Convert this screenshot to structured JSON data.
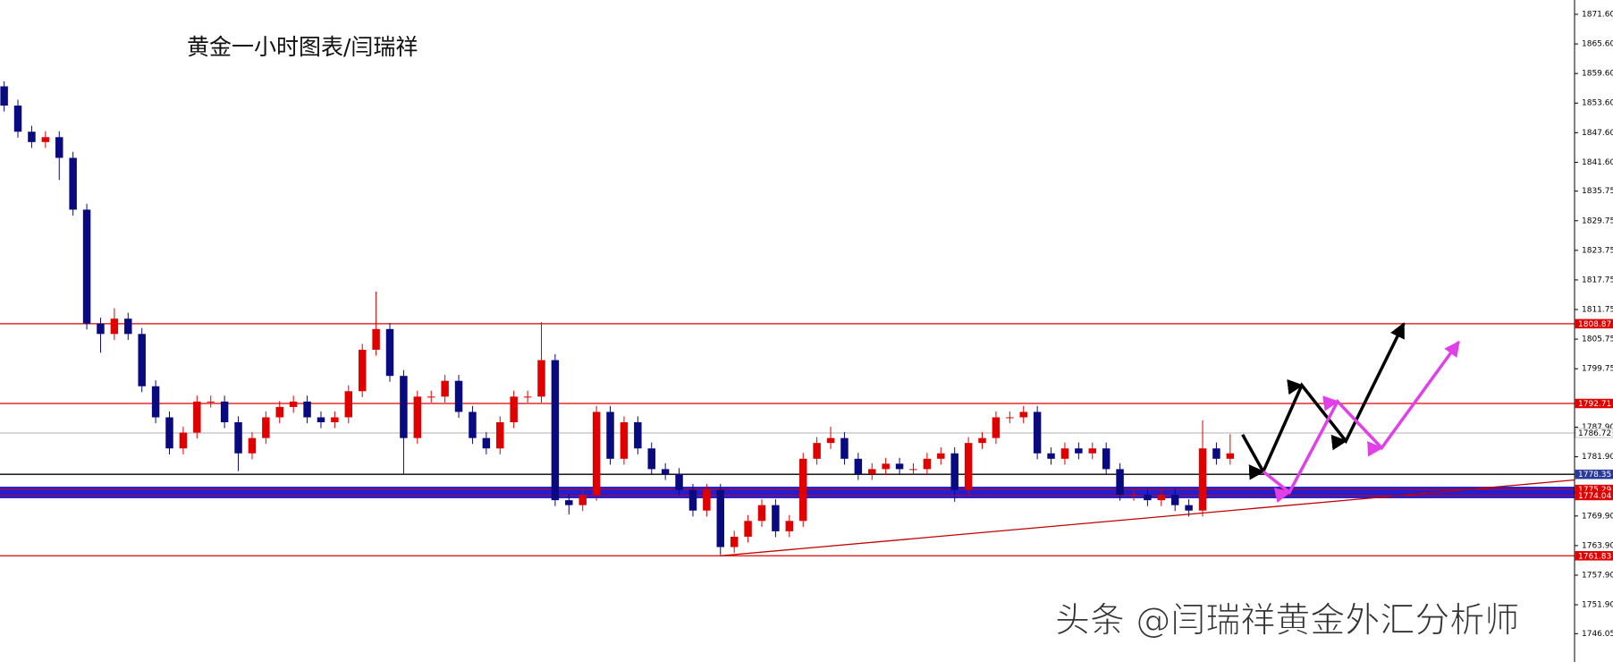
{
  "chart_data": {
    "type": "candlestick",
    "title": "黄金一小时图表/闫瑞祥",
    "watermark": "头条 @闫瑞祥黄金外汇分析师",
    "up_color": "#e00000",
    "down_color": "#0a0a80",
    "open": [
      1857.0,
      1853.1,
      1847.8,
      1845.7,
      1846.7,
      1842.5,
      1832.0,
      1808.9,
      1806.8,
      1809.9,
      1806.8,
      1796.2,
      1789.9,
      1783.6,
      1786.8,
      1793.1,
      1793.1,
      1788.9,
      1782.6,
      1785.7,
      1789.9,
      1792.0,
      1793.1,
      1789.9,
      1788.9,
      1789.9,
      1795.2,
      1803.6,
      1807.8,
      1798.3,
      1785.7,
      1794.1,
      1794.1,
      1797.3,
      1791.0,
      1785.7,
      1783.6,
      1788.9,
      1794.1,
      1794.1,
      1801.5,
      1773.1,
      1772.1,
      1774.2,
      1791.0,
      1781.5,
      1788.9,
      1783.6,
      1779.4,
      1778.4,
      1775.2,
      1771.0,
      1775.2,
      1763.6,
      1765.7,
      1768.9,
      1772.1,
      1766.8,
      1768.9,
      1781.5,
      1784.7,
      1785.7,
      1781.5,
      1778.4,
      1779.4,
      1780.5,
      1779.4,
      1779.4,
      1781.5,
      1782.6,
      1775.2,
      1784.7,
      1785.7,
      1789.9,
      1789.9,
      1791.0,
      1782.6,
      1781.5,
      1783.6,
      1782.6,
      1783.6,
      1779.4,
      1774.2,
      1774.2,
      1773.1,
      1774.2,
      1772.1,
      1771.0,
      1783.6,
      1781.5
    ],
    "high": [
      1858.0,
      1854.3,
      1849.0,
      1847.9,
      1847.9,
      1843.7,
      1833.2,
      1810.1,
      1812.0,
      1811.1,
      1808.0,
      1797.4,
      1791.1,
      1788.0,
      1794.3,
      1794.3,
      1794.3,
      1790.1,
      1786.9,
      1791.1,
      1793.2,
      1794.3,
      1794.3,
      1791.1,
      1791.1,
      1796.4,
      1804.8,
      1815.4,
      1809.0,
      1799.5,
      1795.3,
      1795.3,
      1798.5,
      1798.5,
      1792.2,
      1786.9,
      1790.1,
      1795.3,
      1795.3,
      1809.2,
      1802.7,
      1774.3,
      1775.4,
      1792.2,
      1792.2,
      1790.1,
      1790.1,
      1784.8,
      1780.6,
      1779.6,
      1776.4,
      1776.4,
      1776.4,
      1766.9,
      1770.1,
      1773.3,
      1773.3,
      1770.1,
      1782.7,
      1785.9,
      1788.0,
      1786.9,
      1782.7,
      1780.6,
      1781.7,
      1781.7,
      1780.6,
      1782.7,
      1783.8,
      1783.8,
      1785.9,
      1786.9,
      1791.1,
      1791.1,
      1792.2,
      1792.2,
      1783.8,
      1784.8,
      1784.8,
      1784.8,
      1784.8,
      1780.6,
      1775.4,
      1775.4,
      1775.4,
      1775.4,
      1773.3,
      1789.3,
      1784.8,
      1786.5
    ],
    "low": [
      1851.9,
      1846.6,
      1844.5,
      1844.5,
      1838.0,
      1830.8,
      1807.7,
      1803.0,
      1805.6,
      1805.6,
      1795.0,
      1788.7,
      1782.4,
      1782.4,
      1785.6,
      1791.9,
      1787.7,
      1779.0,
      1781.4,
      1784.5,
      1788.7,
      1790.8,
      1788.7,
      1787.7,
      1787.7,
      1788.7,
      1794.0,
      1802.4,
      1797.1,
      1778.5,
      1784.5,
      1792.9,
      1792.9,
      1789.8,
      1784.5,
      1782.4,
      1782.4,
      1787.7,
      1792.9,
      1792.9,
      1771.9,
      1770.2,
      1770.9,
      1773.0,
      1780.3,
      1780.3,
      1782.4,
      1778.2,
      1777.2,
      1774.0,
      1769.8,
      1769.8,
      1762.0,
      1762.4,
      1764.5,
      1767.7,
      1765.6,
      1765.6,
      1767.7,
      1780.3,
      1783.5,
      1780.3,
      1777.2,
      1777.2,
      1778.2,
      1778.2,
      1778.2,
      1778.2,
      1780.3,
      1772.8,
      1774.0,
      1783.5,
      1784.5,
      1788.7,
      1788.7,
      1781.4,
      1780.3,
      1780.3,
      1781.4,
      1781.4,
      1778.2,
      1773.0,
      1773.0,
      1771.9,
      1771.9,
      1770.9,
      1769.8,
      1769.8,
      1780.3,
      1780.3
    ],
    "close": [
      1853.1,
      1847.8,
      1845.7,
      1846.7,
      1842.5,
      1832.0,
      1808.9,
      1806.8,
      1809.9,
      1806.8,
      1796.2,
      1789.9,
      1783.6,
      1786.8,
      1793.1,
      1793.1,
      1788.9,
      1782.6,
      1785.7,
      1789.9,
      1792.0,
      1793.1,
      1789.9,
      1788.9,
      1789.9,
      1795.2,
      1803.6,
      1807.8,
      1798.3,
      1785.7,
      1794.1,
      1794.1,
      1797.3,
      1791.0,
      1785.7,
      1783.6,
      1788.9,
      1794.1,
      1794.1,
      1801.5,
      1773.1,
      1772.1,
      1774.2,
      1791.0,
      1781.5,
      1788.9,
      1783.6,
      1779.4,
      1778.4,
      1775.2,
      1771.0,
      1775.2,
      1763.6,
      1765.7,
      1768.9,
      1772.1,
      1766.8,
      1768.9,
      1781.5,
      1784.7,
      1785.7,
      1781.5,
      1778.4,
      1779.4,
      1780.5,
      1779.4,
      1779.4,
      1781.5,
      1782.6,
      1775.2,
      1784.7,
      1785.7,
      1789.9,
      1789.9,
      1791.0,
      1782.6,
      1781.5,
      1783.6,
      1782.6,
      1783.6,
      1779.4,
      1774.2,
      1774.2,
      1773.1,
      1774.2,
      1772.1,
      1771.0,
      1783.6,
      1781.5,
      1782.6
    ],
    "xlim": [
      -0.3,
      114
    ],
    "ylim": [
      1740.3,
      1874.5
    ],
    "yticks": [
      {
        "value": 1871.6,
        "label": "1871.60"
      },
      {
        "value": 1865.6,
        "label": "1865.60"
      },
      {
        "value": 1859.6,
        "label": "1859.60"
      },
      {
        "value": 1853.6,
        "label": "1853.60"
      },
      {
        "value": 1847.6,
        "label": "1847.60"
      },
      {
        "value": 1841.6,
        "label": "1841.60"
      },
      1835.75,
      1829.75,
      1823.75,
      1817.75,
      1811.75,
      1805.75,
      1799.75,
      {
        "value": 1787.9,
        "label": "1787.90"
      },
      {
        "value": 1781.9,
        "label": "1781.90"
      },
      {
        "value": 1769.9,
        "label": "1769.90"
      },
      {
        "value": 1763.9,
        "label": "1763.90"
      },
      {
        "value": 1757.9,
        "label": "1757.90"
      },
      {
        "value": 1751.9,
        "label": "1751.90"
      },
      {
        "value": 1746.05,
        "label": "1746.05"
      }
    ],
    "levels": [
      {
        "value": 1808.87,
        "color": "#e00000",
        "tag_color": "#e00000",
        "text_color": "#ffffff"
      },
      {
        "value": 1792.71,
        "color": "#e00000",
        "tag_color": "#e00000",
        "text_color": "#ffffff"
      },
      {
        "value": 1786.72,
        "color": "#c0c0c0",
        "tag_color": "#ffffff",
        "text_color": "#000000"
      },
      {
        "value": 1778.35,
        "color": "#000000",
        "tag_color": "#2a3a9a",
        "text_color": "#ffffff"
      },
      {
        "value": 1775.29,
        "color": "#e00000",
        "tag_color": "#e00000",
        "text_color": "#ffffff",
        "band": true
      },
      {
        "value": 1774.04,
        "color": "#e00000",
        "tag_color": "#e00000",
        "text_color": "#ffffff",
        "band": true
      },
      {
        "value": 1761.83,
        "color": "#e00000",
        "tag_color": "#e00000",
        "text_color": "#ffffff"
      }
    ],
    "band_color": "#1e1ed2",
    "trendline": {
      "color": "#c00000",
      "x": [
        52,
        114
      ],
      "values": [
        1761.83,
        1777.2
      ]
    },
    "projections": [
      {
        "color": "#000000",
        "x": [
          89.9,
          91.4,
          94.2,
          97.4,
          101.6
        ],
        "values": [
          1786.4,
          1778.9,
          1796.4,
          1785.1,
          1808.9
        ]
      },
      {
        "color": "#e040e8",
        "x": [
          91.4,
          93.3,
          96.8,
          100.0,
          105.6
        ],
        "values": [
          1778.9,
          1774.7,
          1793.1,
          1783.7,
          1805.2
        ]
      }
    ]
  }
}
